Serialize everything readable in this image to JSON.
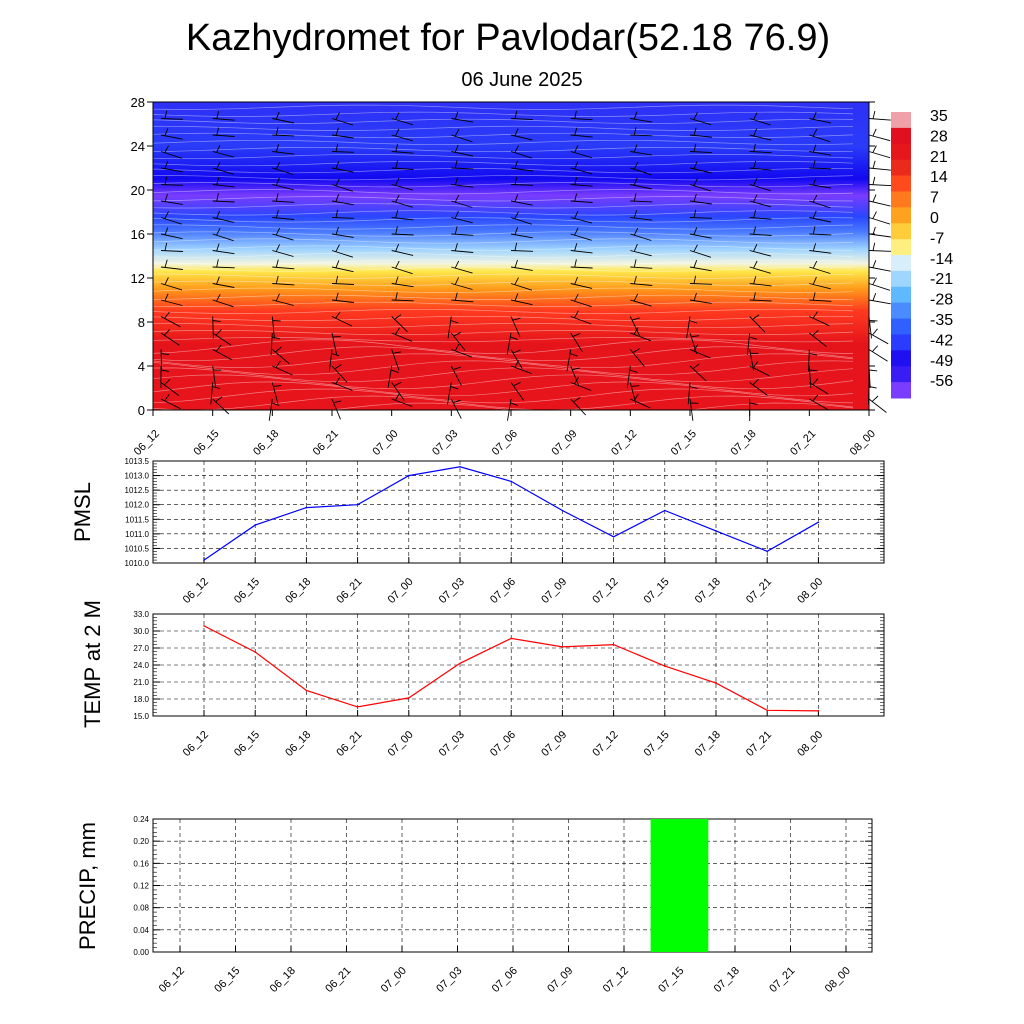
{
  "title": "Kazhydromet for Pavlodar(52.18 76.9)",
  "subtitle": "06 June 2025",
  "chart_data": [
    {
      "type": "heatmap",
      "name": "temperature-cross-section",
      "y_ticks": [
        "0",
        "4",
        "8",
        "12",
        "16",
        "20",
        "24",
        "28"
      ],
      "ylim": [
        0,
        28
      ],
      "x_ticks": [
        "06_12",
        "06_15",
        "06_18",
        "06_21",
        "07_00",
        "07_03",
        "07_06",
        "07_09",
        "07_12",
        "07_15",
        "07_18",
        "07_21",
        "08_00"
      ],
      "colorbar_labels": [
        "35",
        "28",
        "21",
        "14",
        "7",
        "0",
        "-7",
        "-14",
        "-21",
        "-28",
        "-35",
        "-42",
        "-49",
        "-56"
      ],
      "levels": [
        0,
        2,
        4,
        6,
        8,
        10,
        11,
        12,
        13,
        14,
        15,
        16,
        17,
        18,
        20,
        22,
        24,
        26,
        28
      ],
      "temperature_by_level": [
        30,
        24,
        20,
        14,
        7,
        0,
        -4,
        -8,
        -14,
        -24,
        -36,
        -46,
        -52,
        -56,
        -58,
        -56,
        -54,
        -52,
        -50
      ],
      "colors": {
        "warm": "#e8141c",
        "hot": "#ff3a1f",
        "orange": "#ff9a1a",
        "yellow": "#ffe74a",
        "light": "#f3f5e0",
        "lightblue": "#9fd4ff",
        "blue": "#2a46ff",
        "deepblue": "#1208f0",
        "violet": "#7a3cff"
      }
    },
    {
      "type": "line",
      "name": "PMSL",
      "ylabel": "PMSL",
      "y_ticks": [
        "1010.0",
        "1010.5",
        "1011.0",
        "1011.5",
        "1012.0",
        "1012.5",
        "1013.0",
        "1013.5"
      ],
      "ylim": [
        1010.0,
        1013.5
      ],
      "x": [
        "06_12",
        "06_15",
        "06_18",
        "06_21",
        "07_00",
        "07_03",
        "07_06",
        "07_09",
        "07_12",
        "07_15",
        "07_18",
        "07_21",
        "08_00"
      ],
      "values": [
        1010.1,
        1011.3,
        1011.9,
        1012.0,
        1013.0,
        1013.3,
        1012.8,
        1011.8,
        1010.9,
        1011.8,
        1011.1,
        1010.4,
        1011.4
      ],
      "color": "#0000ff"
    },
    {
      "type": "line",
      "name": "TEMP at 2 M",
      "ylabel": "TEMP at 2 M",
      "y_ticks": [
        "15.0",
        "18.0",
        "21.0",
        "24.0",
        "27.0",
        "30.0",
        "33.0"
      ],
      "ylim": [
        15.0,
        33.0
      ],
      "x": [
        "06_12",
        "06_15",
        "06_18",
        "06_21",
        "07_00",
        "07_03",
        "07_06",
        "07_09",
        "07_12",
        "07_15",
        "07_18",
        "07_21",
        "08_00"
      ],
      "values": [
        30.9,
        26.3,
        19.5,
        16.6,
        18.2,
        24.3,
        28.7,
        27.2,
        27.6,
        23.8,
        20.8,
        16.0,
        15.9
      ],
      "color": "#ff0000"
    },
    {
      "type": "bar",
      "name": "PRECIP, mm",
      "ylabel": "PRECIP, mm",
      "y_ticks": [
        "0.00",
        "0.04",
        "0.08",
        "0.12",
        "0.16",
        "0.20",
        "0.24"
      ],
      "ylim": [
        0,
        0.24
      ],
      "x": [
        "06_12",
        "06_15",
        "06_18",
        "06_21",
        "07_00",
        "07_03",
        "07_06",
        "07_09",
        "07_12",
        "07_15",
        "07_18",
        "07_21",
        "08_00"
      ],
      "values": [
        0,
        0,
        0,
        0,
        0,
        0,
        0,
        0,
        0,
        0.24,
        0,
        0,
        0
      ],
      "color": "#00ff00"
    }
  ]
}
